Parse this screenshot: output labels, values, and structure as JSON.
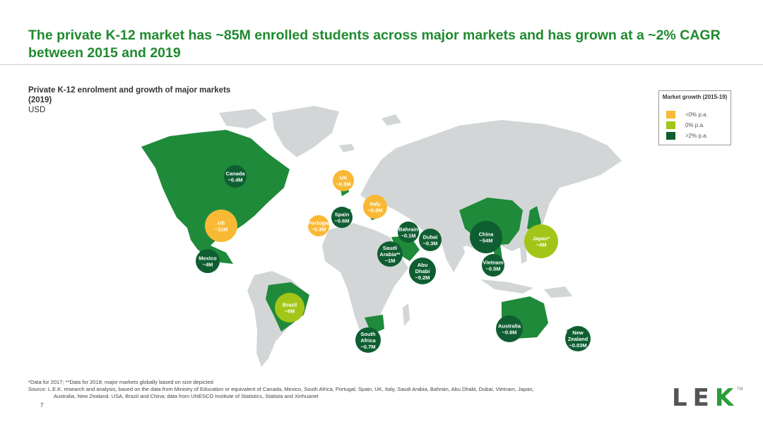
{
  "title": "The private K-12 market has ~85M enrolled students across major markets and has grown at a ~2% CAGR between 2015 and 2019",
  "subtitle": {
    "line1": "Private K-12 enrolment and growth of major markets",
    "line2": "(2019)",
    "line3": "USD"
  },
  "legend": {
    "title": "Market growth (2015-19)",
    "items": [
      {
        "label": "<0% p.a.",
        "color": "#f9b935"
      },
      {
        "label": "0% p.a.",
        "color": "#a2c617"
      },
      {
        "label": ">2% p.a.",
        "color": "#0f5e32"
      }
    ]
  },
  "colors": {
    "land": "#d3d6d7",
    "highlight": "#1e8a3a",
    "negative": "#f9b935",
    "flat": "#a2c617",
    "positive": "#0f5e32"
  },
  "markets": [
    {
      "name": "Canada",
      "value": "~0.4M",
      "growth": "positive"
    },
    {
      "name": "UK",
      "value": "~0.6M",
      "growth": "negative"
    },
    {
      "name": "Italy",
      "value": "~0.8M",
      "growth": "negative"
    },
    {
      "name": "Spain",
      "value": "~0.6M",
      "growth": "positive"
    },
    {
      "name": "Portugal",
      "value": "~0.3M",
      "growth": "negative"
    },
    {
      "name": "US",
      "value": "~11M",
      "growth": "negative"
    },
    {
      "name": "Mexico",
      "value": "~4M",
      "growth": "positive"
    },
    {
      "name": "Bahrain",
      "value": "~0.1M",
      "growth": "positive"
    },
    {
      "name": "Dubai",
      "value": "~0.3M",
      "growth": "positive"
    },
    {
      "name": "Saudi Arabia**",
      "value": "~1M",
      "growth": "positive"
    },
    {
      "name": "Abu Dhabi",
      "value": "~0.2M",
      "growth": "positive"
    },
    {
      "name": "China",
      "value": "~54M",
      "growth": "positive"
    },
    {
      "name": "Japan*",
      "value": "~4M",
      "growth": "flat"
    },
    {
      "name": "Vietnam",
      "value": "~0.5M",
      "growth": "positive"
    },
    {
      "name": "Brazil",
      "value": "~6M",
      "growth": "flat"
    },
    {
      "name": "South Africa",
      "value": "~0.7M",
      "growth": "positive"
    },
    {
      "name": "Australia",
      "value": "~0.6M",
      "growth": "positive"
    },
    {
      "name": "New Zealand",
      "value": "~0.03M",
      "growth": "positive"
    }
  ],
  "footnote": {
    "line1": "*Data for 2017; **Data for 2018; major markets globally based on size depicted",
    "line2": "Source: L.E.K. research and analysis, based on the data from Ministry of Education or equivalent of Canada, Mexico, South Africa, Portugal, Spain, UK, Italy, Saudi Arabia, Bahrain, Abu Dhabi, Dubai, Vietnam, Japan,",
    "line3": "Australia, New Zealand. USA, Brazil and China; data from UNESCO Institute of Statistics, Statista and Xinhuanet"
  },
  "page_number": "7",
  "logo": {
    "left": "LE",
    "accent": "K",
    "tm": "TM"
  }
}
